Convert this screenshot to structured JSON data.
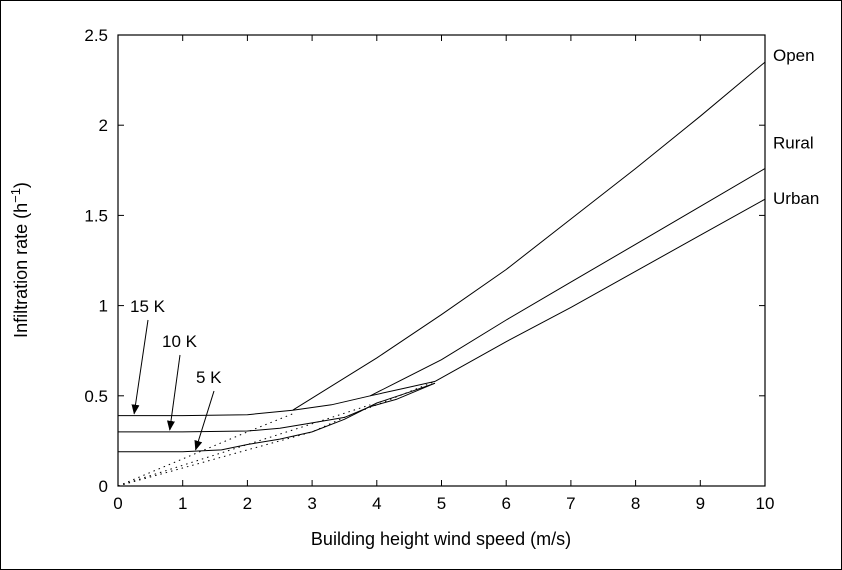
{
  "chart_data": {
    "type": "line",
    "title": "",
    "xlabel": "Building height wind speed   (m/s)",
    "ylabel": "Infiltration rate  (h",
    "ylabel_superscript": "−1",
    "ylabel_close": ")",
    "xlim": [
      0,
      10
    ],
    "ylim": [
      0,
      2.5
    ],
    "xticks": [
      0,
      1,
      2,
      3,
      4,
      5,
      6,
      7,
      8,
      9,
      10
    ],
    "yticks": [
      0,
      0.5,
      1,
      1.5,
      2,
      2.5
    ],
    "ytick_labels": [
      "0",
      "0.5",
      "1",
      "1.5",
      "2",
      "2.5"
    ],
    "grid": false,
    "series": [
      {
        "name": "Open",
        "style": "solid",
        "points": [
          [
            2.7,
            0.42
          ],
          [
            4,
            0.71
          ],
          [
            5,
            0.95
          ],
          [
            6,
            1.2
          ],
          [
            7,
            1.48
          ],
          [
            8,
            1.76
          ],
          [
            9,
            2.05
          ],
          [
            10,
            2.35
          ]
        ]
      },
      {
        "name": "Rural",
        "style": "solid",
        "points": [
          [
            3.9,
            0.5
          ],
          [
            5,
            0.7
          ],
          [
            6,
            0.92
          ],
          [
            7,
            1.13
          ],
          [
            8,
            1.34
          ],
          [
            9,
            1.55
          ],
          [
            10,
            1.76
          ]
        ]
      },
      {
        "name": "Urban",
        "style": "solid",
        "points": [
          [
            4.9,
            0.58
          ],
          [
            6,
            0.8
          ],
          [
            7,
            0.99
          ],
          [
            8,
            1.19
          ],
          [
            9,
            1.39
          ],
          [
            10,
            1.59
          ]
        ]
      },
      {
        "name": "15 K",
        "style": "solid",
        "points": [
          [
            0,
            0.39
          ],
          [
            1,
            0.39
          ],
          [
            2,
            0.395
          ],
          [
            2.7,
            0.42
          ],
          [
            3.3,
            0.45
          ],
          [
            3.9,
            0.5
          ],
          [
            4.4,
            0.54
          ],
          [
            4.9,
            0.58
          ]
        ]
      },
      {
        "name": "10 K",
        "style": "solid",
        "points": [
          [
            0,
            0.3
          ],
          [
            1,
            0.3
          ],
          [
            2,
            0.305
          ],
          [
            2.5,
            0.32
          ],
          [
            3,
            0.35
          ],
          [
            3.5,
            0.38
          ],
          [
            3.9,
            0.44
          ],
          [
            4.3,
            0.48
          ],
          [
            4.9,
            0.57
          ]
        ]
      },
      {
        "name": "5 K",
        "style": "solid",
        "points": [
          [
            0,
            0.19
          ],
          [
            1,
            0.19
          ],
          [
            1.6,
            0.2
          ],
          [
            2,
            0.23
          ],
          [
            2.5,
            0.26
          ],
          [
            3,
            0.3
          ],
          [
            3.5,
            0.37
          ],
          [
            4,
            0.46
          ],
          [
            4.5,
            0.52
          ],
          [
            4.9,
            0.57
          ]
        ]
      },
      {
        "name": "",
        "style": "dotted",
        "points": [
          [
            0,
            0
          ],
          [
            1,
            0.1
          ],
          [
            2,
            0.2
          ],
          [
            2.5,
            0.25
          ],
          [
            3,
            0.3
          ],
          [
            3.5,
            0.38
          ],
          [
            4,
            0.45
          ],
          [
            4.9,
            0.58
          ]
        ]
      },
      {
        "name": "",
        "style": "dotted",
        "points": [
          [
            0,
            0
          ],
          [
            1,
            0.115
          ],
          [
            2,
            0.23
          ],
          [
            3,
            0.345
          ],
          [
            3.9,
            0.45
          ]
        ]
      },
      {
        "name": "",
        "style": "dotted",
        "points": [
          [
            0,
            0
          ],
          [
            1,
            0.15
          ],
          [
            2,
            0.3
          ],
          [
            2.7,
            0.4
          ]
        ]
      }
    ],
    "annotations": [
      {
        "text": "15 K",
        "arrow_to": [
          0.25,
          0.39
        ]
      },
      {
        "text": "10 K",
        "arrow_to": [
          0.8,
          0.3
        ]
      },
      {
        "text": "5 K",
        "arrow_to": [
          1.2,
          0.19
        ]
      }
    ]
  }
}
